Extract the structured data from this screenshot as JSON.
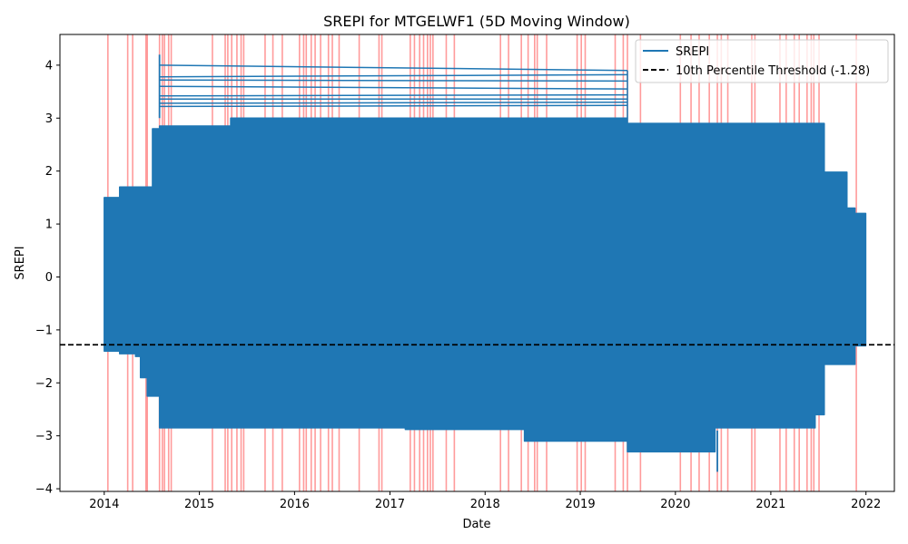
{
  "chart_data": {
    "type": "line",
    "title": "SREPI for MTGELWF1 (5D Moving Window)",
    "xlabel": "Date",
    "ylabel": "SREPI",
    "x_range": [
      "2013-07-15",
      "2022-04-20"
    ],
    "ylim": [
      -4.05,
      4.58
    ],
    "x_ticks": [
      "2014",
      "2015",
      "2016",
      "2017",
      "2018",
      "2019",
      "2020",
      "2021",
      "2022"
    ],
    "y_ticks": [
      -4,
      -3,
      -2,
      -1,
      0,
      1,
      2,
      3,
      4
    ],
    "grid": false,
    "legend_position": "top-right",
    "colors": {
      "series": "#1f77b4",
      "threshold": "#000000",
      "drought_band": "#ff9090"
    },
    "series": [
      {
        "name": "SREPI",
        "style": "solid",
        "start_date": "2014-01-01",
        "end_date": "2021-12-31",
        "envelope": [
          [
            "2014-01-01",
            1.5,
            -1.4
          ],
          [
            "2014-03-01",
            1.7,
            -1.45
          ],
          [
            "2014-05-01",
            1.7,
            -1.5
          ],
          [
            "2014-05-20",
            1.7,
            -1.9
          ],
          [
            "2014-06-15",
            1.7,
            -2.25
          ],
          [
            "2014-07-05",
            2.8,
            -2.25
          ],
          [
            "2014-08-01",
            2.85,
            -2.85
          ],
          [
            "2015-05-01",
            3.0,
            -2.85
          ],
          [
            "2017-03-01",
            3.0,
            -2.88
          ],
          [
            "2018-06-01",
            3.0,
            -3.1
          ],
          [
            "2019-07-01",
            2.9,
            -3.3
          ],
          [
            "2020-06-01",
            2.9,
            -2.85
          ],
          [
            "2021-03-15",
            2.9,
            -2.85
          ],
          [
            "2021-06-20",
            2.9,
            -2.6
          ],
          [
            "2021-07-25",
            1.98,
            -1.65
          ],
          [
            "2021-10-20",
            1.3,
            -1.65
          ],
          [
            "2021-11-20",
            1.2,
            -1.3
          ],
          [
            "2021-12-31",
            0.2,
            -1.3
          ]
        ],
        "spikes": [
          [
            "2014-08-01",
            4.2
          ],
          [
            "2020-06-10",
            -3.68
          ]
        ],
        "horizontal_segments": [
          [
            "2014-08-01",
            "2019-07-01",
            4.0,
            3.9
          ],
          [
            "2014-08-01",
            "2019-07-01",
            3.78,
            3.82
          ],
          [
            "2014-08-01",
            "2019-07-01",
            3.72,
            3.7
          ],
          [
            "2014-08-01",
            "2019-07-01",
            3.6,
            3.55
          ],
          [
            "2014-08-01",
            "2019-07-01",
            3.42,
            3.44
          ],
          [
            "2014-08-01",
            "2019-07-01",
            3.36,
            3.36
          ],
          [
            "2014-08-01",
            "2019-07-01",
            3.28,
            3.3
          ],
          [
            "2014-08-01",
            "2019-07-01",
            3.22,
            3.24
          ]
        ]
      },
      {
        "name": "10th Percentile Threshold (-1.28)",
        "style": "dashed",
        "value": -1.28
      }
    ],
    "drought_events": [
      "2014-01-15",
      "2014-04-01",
      "2014-04-20",
      "2014-06-10",
      "2014-06-15",
      "2014-08-01",
      "2014-08-12",
      "2014-08-20",
      "2014-09-05",
      "2014-09-15",
      "2015-02-20",
      "2015-04-10",
      "2015-04-20",
      "2015-05-05",
      "2015-05-25",
      "2015-06-10",
      "2015-06-20",
      "2015-09-10",
      "2015-10-10",
      "2015-11-15",
      "2016-01-20",
      "2016-02-05",
      "2016-02-15",
      "2016-03-05",
      "2016-03-20",
      "2016-04-10",
      "2016-05-10",
      "2016-05-25",
      "2016-06-20",
      "2016-09-05",
      "2016-11-20",
      "2016-12-01",
      "2017-03-20",
      "2017-04-05",
      "2017-04-25",
      "2017-05-10",
      "2017-05-25",
      "2017-06-05",
      "2017-06-15",
      "2017-08-05",
      "2017-09-05",
      "2018-03-01",
      "2018-04-01",
      "2018-05-20",
      "2018-06-15",
      "2018-07-10",
      "2018-07-20",
      "2018-08-25",
      "2018-12-20",
      "2019-01-05",
      "2019-01-20",
      "2019-05-15",
      "2019-06-15",
      "2019-07-01",
      "2019-08-20",
      "2020-01-20",
      "2020-03-01",
      "2020-04-01",
      "2020-05-10",
      "2020-06-10",
      "2020-06-25",
      "2020-07-20",
      "2020-10-20",
      "2020-11-01",
      "2021-02-05",
      "2021-03-01",
      "2021-04-01",
      "2021-04-20",
      "2021-05-20",
      "2021-06-05",
      "2021-06-15",
      "2021-07-05",
      "2021-11-25"
    ]
  }
}
